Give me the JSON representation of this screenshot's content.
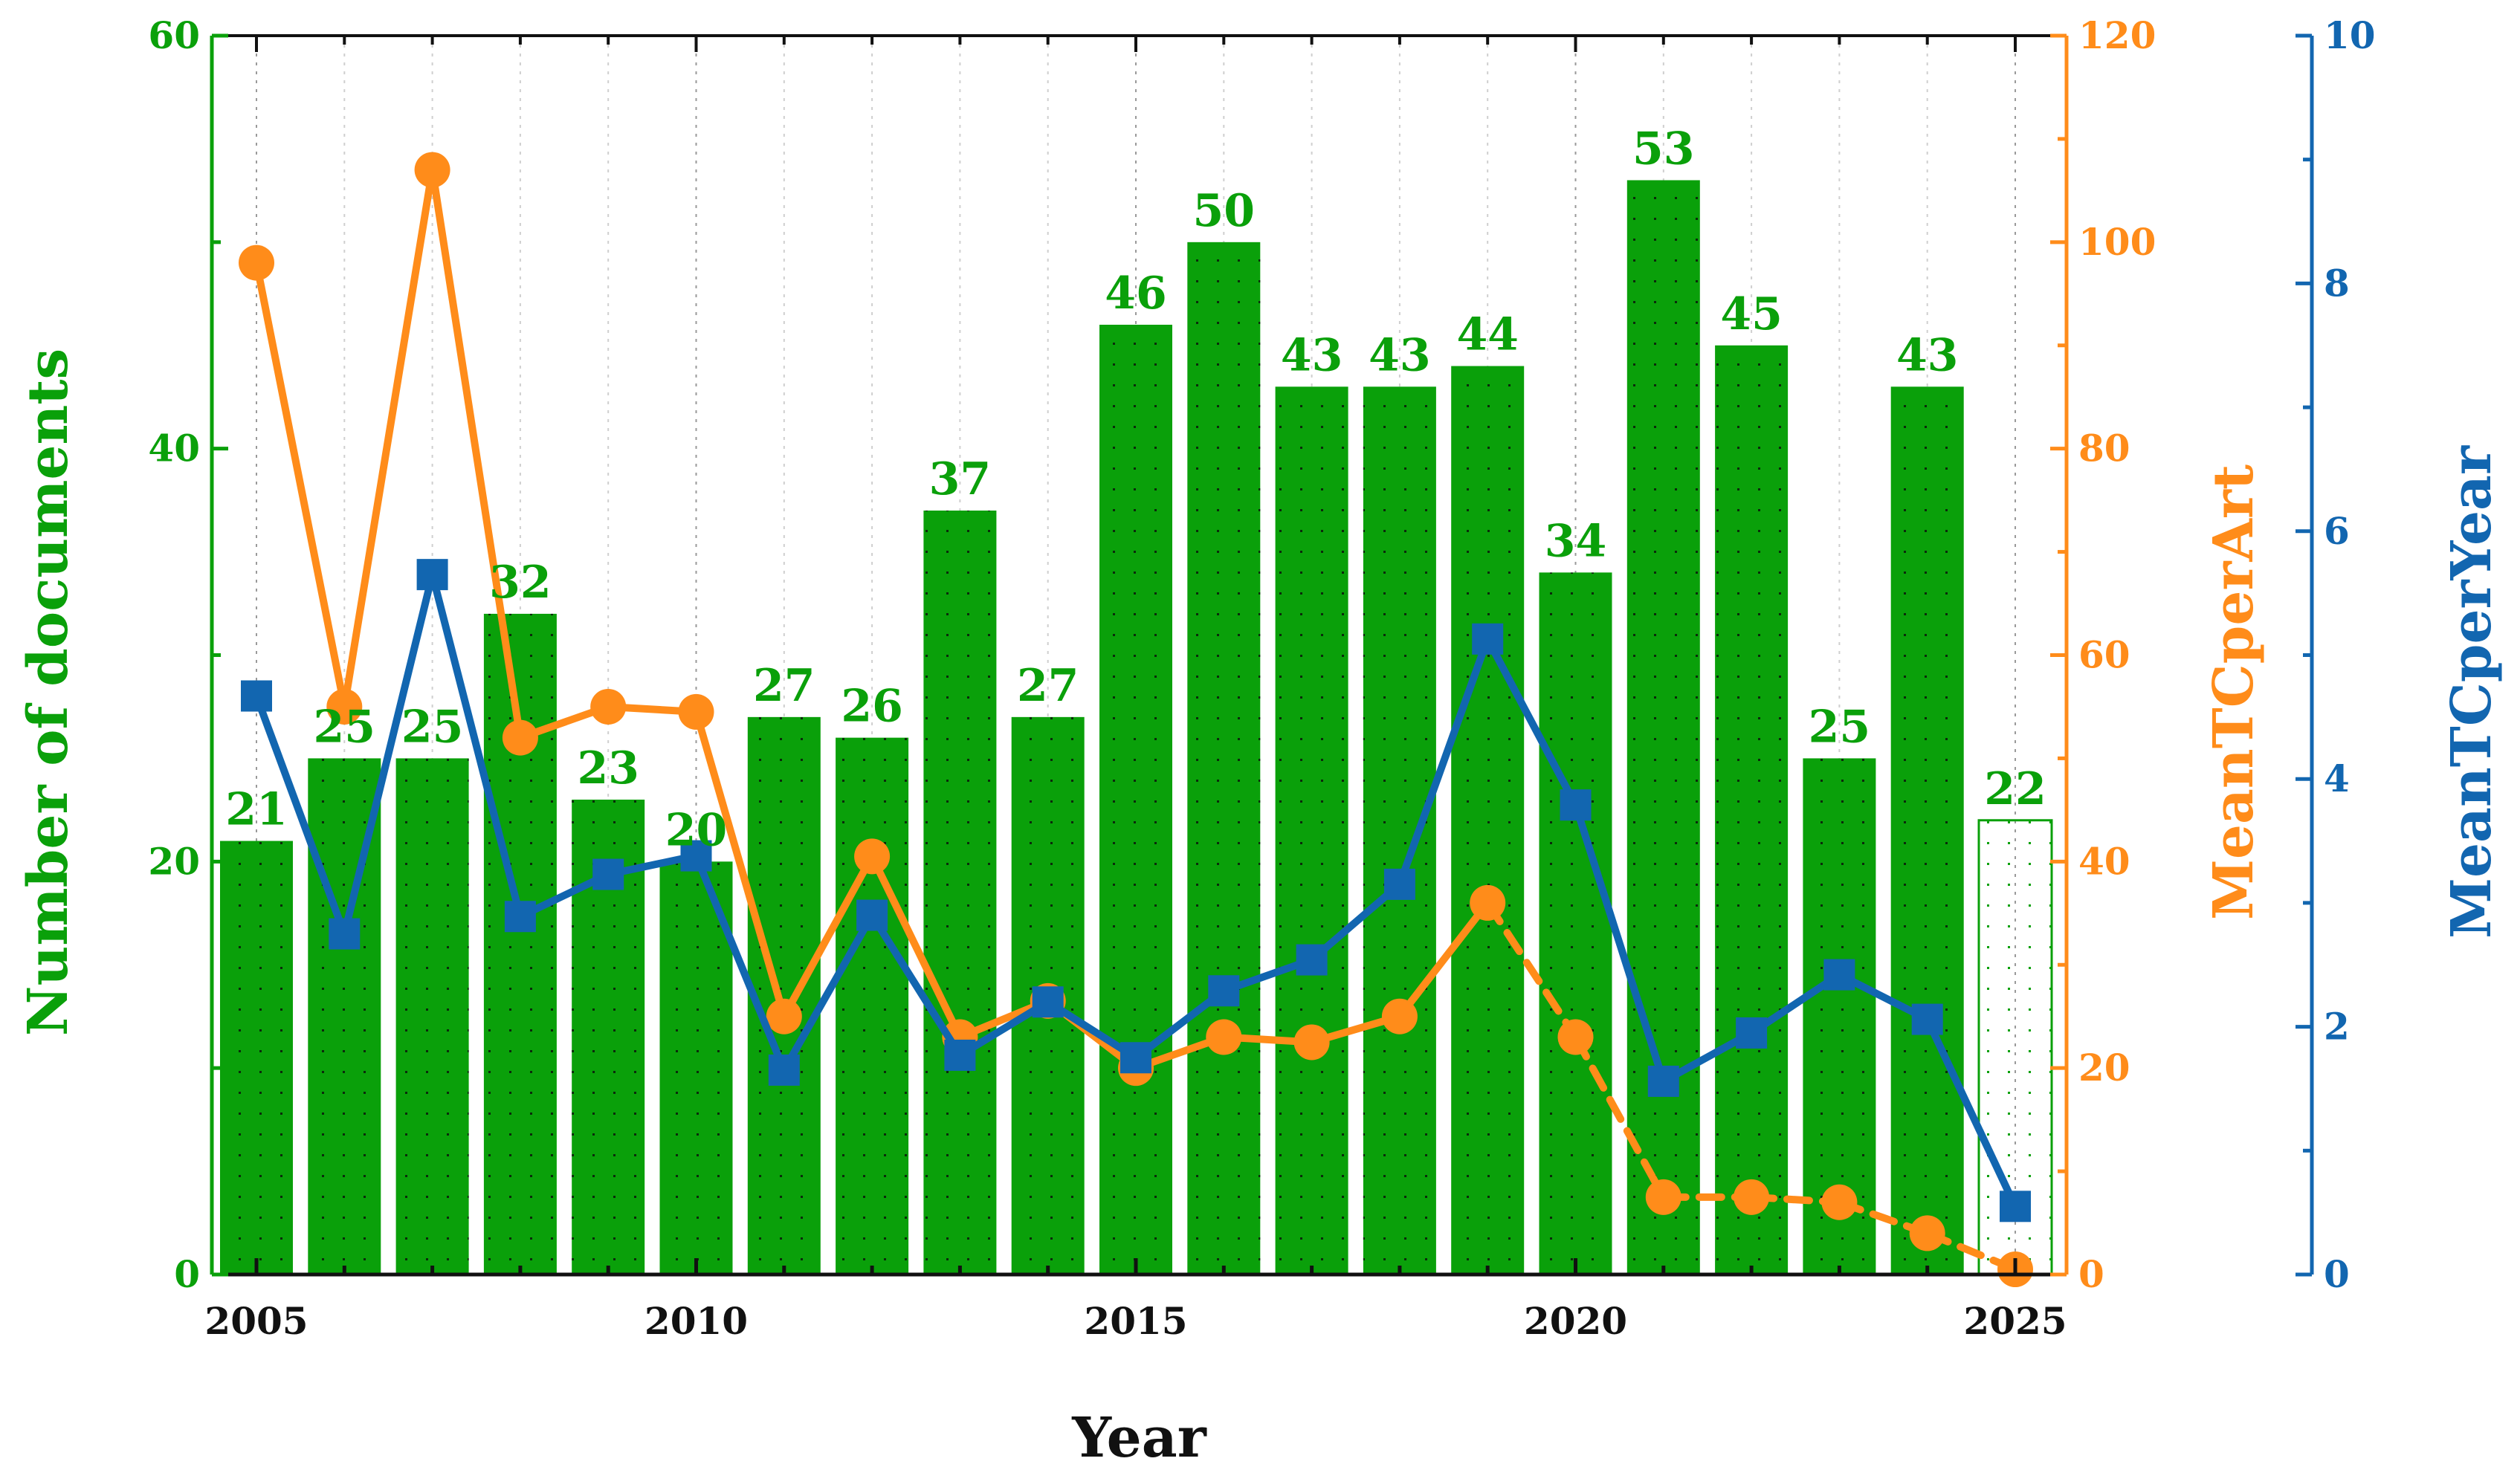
{
  "chart_data": {
    "type": "bar",
    "title": "",
    "xlabel": "Year",
    "categories": [
      "2005",
      "2006",
      "2007",
      "2008",
      "2009",
      "2010",
      "2011",
      "2012",
      "2013",
      "2014",
      "2015",
      "2016",
      "2017",
      "2018",
      "2019",
      "2020",
      "2021",
      "2022",
      "2023",
      "2024",
      "2025"
    ],
    "x_ticks": [
      "2005",
      "2010",
      "2015",
      "2020",
      "2025"
    ],
    "series": [
      {
        "name": "Number of documents",
        "kind": "bar",
        "axis": "left",
        "color": "#0aa00a",
        "values": [
          21,
          25,
          25,
          32,
          23,
          20,
          27,
          26,
          37,
          27,
          46,
          50,
          43,
          43,
          44,
          34,
          53,
          45,
          25,
          43,
          22
        ],
        "hatched_last": true
      },
      {
        "name": "MeanTCperArt",
        "kind": "line",
        "axis": "right1",
        "color": "#ff8c1a",
        "marker": "circle",
        "values": [
          98,
          55,
          107,
          52,
          55,
          54.5,
          25,
          40.5,
          23,
          26.5,
          20,
          23,
          22.5,
          25,
          36,
          23,
          7.5,
          7.5,
          7,
          4,
          0.5
        ]
      },
      {
        "name": "MeanTCperYear",
        "kind": "line",
        "axis": "right2",
        "color": "#1266b0",
        "marker": "square",
        "values": [
          4.67,
          2.75,
          5.65,
          2.89,
          3.23,
          3.38,
          1.65,
          2.9,
          1.77,
          2.2,
          1.75,
          2.29,
          2.54,
          3.15,
          5.13,
          3.79,
          1.56,
          1.95,
          2.42,
          2.06,
          0.55
        ]
      }
    ],
    "axes": {
      "left": {
        "label": "Number of documents",
        "ylim": [
          0,
          60
        ],
        "ticks": [
          0,
          20,
          40,
          60
        ],
        "color": "#0aa00a"
      },
      "right1": {
        "label": "MeanTCperArt",
        "ylim": [
          0,
          120
        ],
        "ticks": [
          0,
          20,
          40,
          60,
          80,
          100,
          120
        ],
        "color": "#ff8c1a"
      },
      "right2": {
        "label": "MeanTCperYear",
        "ylim": [
          0,
          10
        ],
        "ticks": [
          0,
          2,
          4,
          6,
          8,
          10
        ],
        "color": "#1266b0"
      }
    },
    "grid": "vertical-dotted"
  }
}
